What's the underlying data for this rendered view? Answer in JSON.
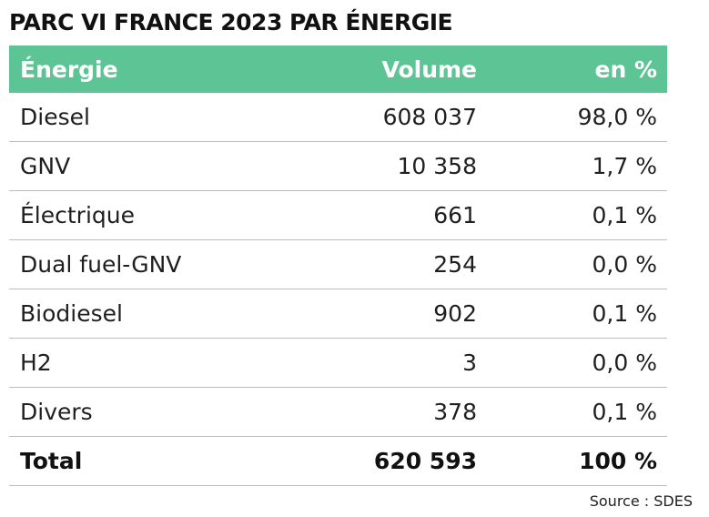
{
  "title": "PARC VI FRANCE 2023 PAR ÉNERGIE",
  "table": {
    "headers": {
      "energie": "Énergie",
      "volume": "Volume",
      "pct": "en %"
    },
    "rows": [
      {
        "energie": "Diesel",
        "volume": "608 037",
        "pct": "98,0 %"
      },
      {
        "energie": "GNV",
        "volume": "10 358",
        "pct": "1,7 %"
      },
      {
        "energie": "Électrique",
        "volume": "661",
        "pct": "0,1 %"
      },
      {
        "energie": "Dual fuel-GNV",
        "volume": "254",
        "pct": "0,0 %"
      },
      {
        "energie": "Biodiesel",
        "volume": "902",
        "pct": "0,1 %"
      },
      {
        "energie": "H2",
        "volume": "3",
        "pct": "0,0 %"
      },
      {
        "energie": "Divers",
        "volume": "378",
        "pct": "0,1 %"
      }
    ],
    "total": {
      "energie": "Total",
      "volume": "620 593",
      "pct": "100 %"
    }
  },
  "source": "Source : SDES",
  "colors": {
    "header_bg": "#5cc495",
    "header_text": "#ffffff",
    "divider": "#bdbdbd"
  }
}
